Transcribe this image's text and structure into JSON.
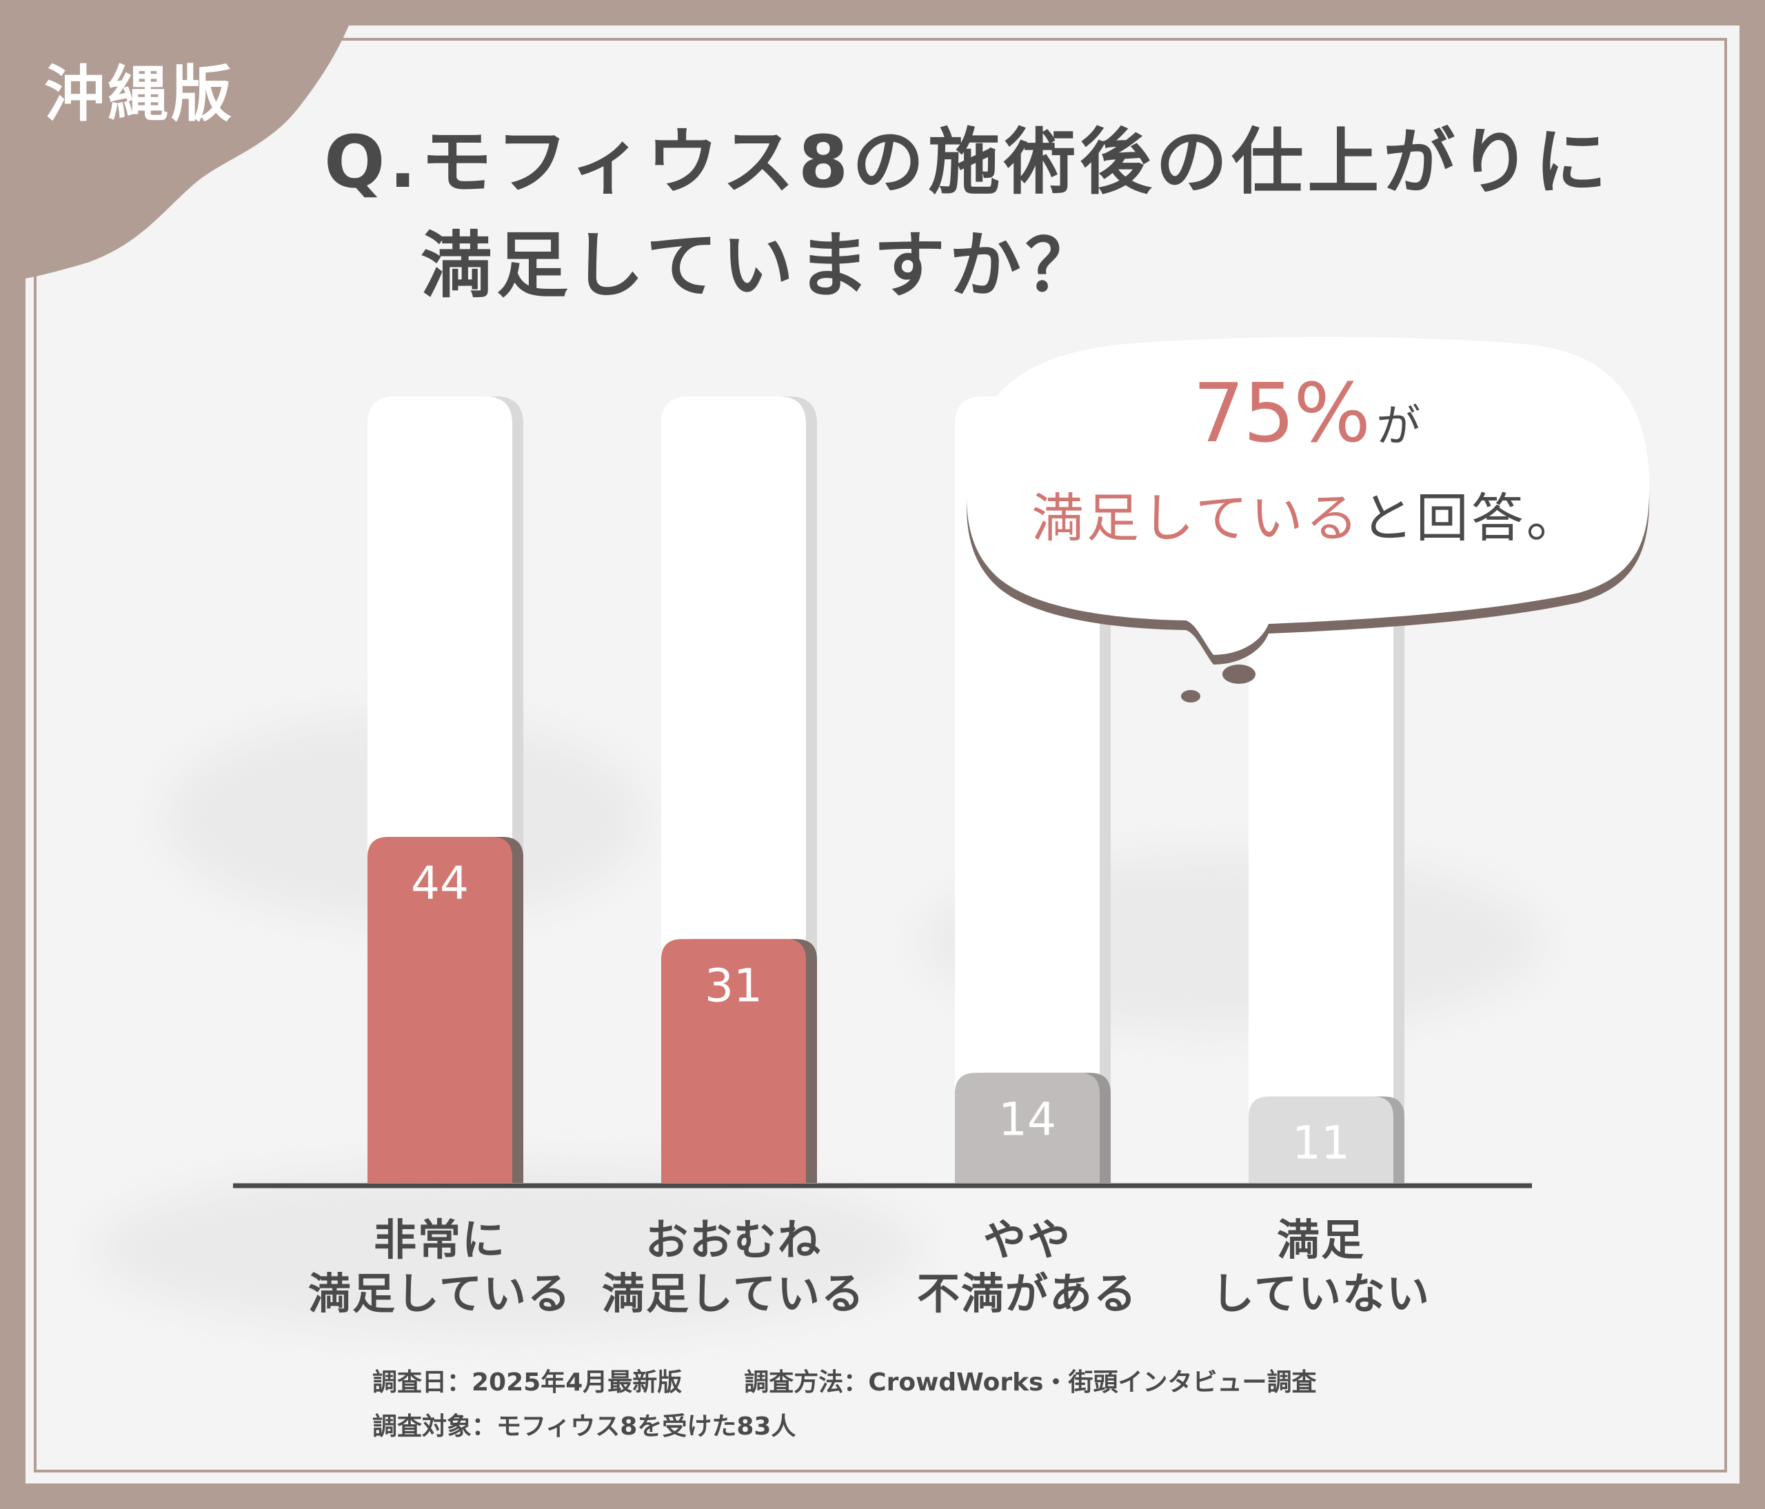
{
  "badge": "沖縄版",
  "title": {
    "line1": "Q.モフィウス8の施術後の仕上がりに",
    "line2": "満足していますか？"
  },
  "callout": {
    "percent": "75%",
    "ga": "が",
    "phrase_pink": "満足している",
    "phrase_rest": "と回答。"
  },
  "footer": {
    "date": "調査日：2025年4月最新版",
    "method": "調査方法：CrowdWorks・街頭インタビュー調査",
    "target": "調査対象：モフィウス8を受けた83人"
  },
  "colors": {
    "background": "#b29d95",
    "accent": "#d27672",
    "accent_shadow": "#7a6965",
    "neutral_bar": "#bfbcbb",
    "light_bar": "#dcdcdc",
    "text": "#4a4a4a"
  },
  "chart_data": {
    "type": "bar",
    "categories": [
      [
        "非常に",
        "満足している"
      ],
      [
        "おおむね",
        "満足している"
      ],
      [
        "やや",
        "不満がある"
      ],
      [
        "満足",
        "していない"
      ]
    ],
    "values": [
      44,
      31,
      14,
      11
    ],
    "value_labels": [
      "44",
      "31",
      "14",
      "11"
    ],
    "ylim": [
      0,
      100
    ],
    "grid": false,
    "legend": "none"
  }
}
